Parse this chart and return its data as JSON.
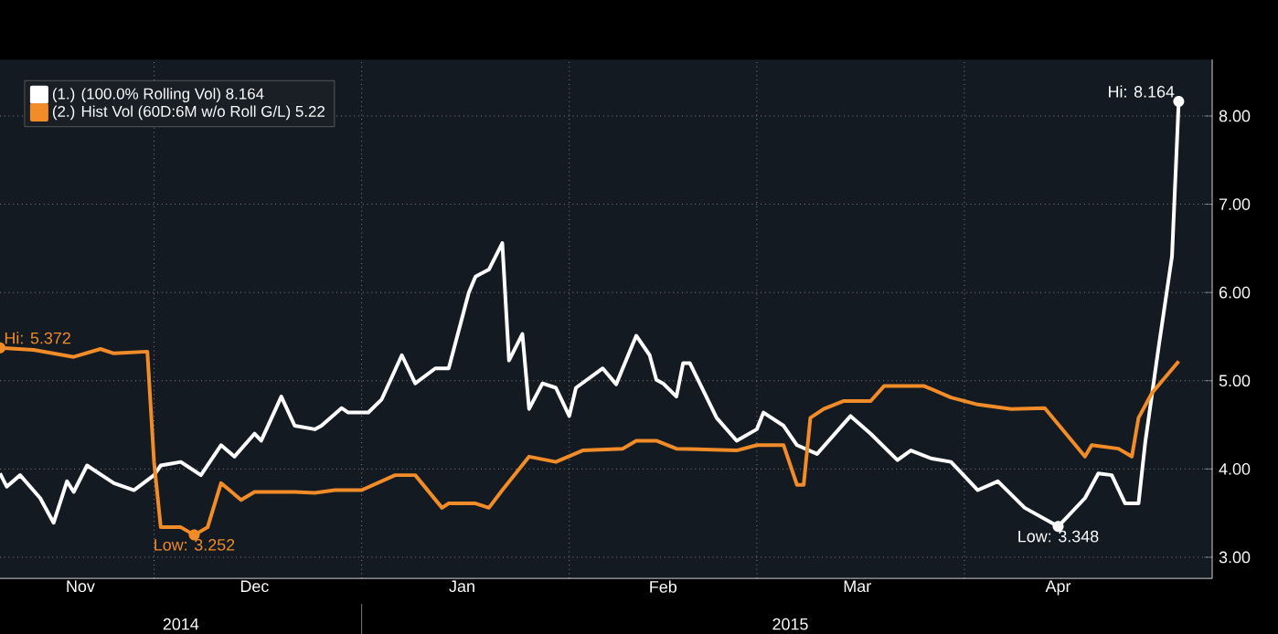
{
  "chart_data": {
    "type": "line",
    "xlim": [
      "2014-11-08",
      "2015-05-08"
    ],
    "ylim": [
      2.76,
      8.64
    ],
    "xticks": [
      {
        "value": "2014-11-20",
        "label": "Nov"
      },
      {
        "value": "2014-12-16",
        "label": "Dec"
      },
      {
        "value": "2015-01-16",
        "label": "Jan"
      },
      {
        "value": "2015-02-15",
        "label": "Feb"
      },
      {
        "value": "2015-03-16",
        "label": "Mar"
      },
      {
        "value": "2015-04-15",
        "label": "Apr"
      },
      {
        "value": "2014-12-01",
        "label": null
      },
      {
        "value": "2015-01-01",
        "label": null
      },
      {
        "value": "2015-02-01",
        "label": null
      },
      {
        "value": "2015-03-01",
        "label": null
      },
      {
        "value": "2015-04-01",
        "label": null
      }
    ],
    "x2lim": [
      "2014-11-08",
      "2015-05-08"
    ],
    "x2ticks": [
      {
        "value": "2014-12-05",
        "label": "2014"
      },
      {
        "value": "2015-03-06",
        "label": "2015"
      },
      {
        "value": "2015-01-01",
        "label": null
      }
    ],
    "yticks": [
      {
        "value": 3,
        "label": "3.00"
      },
      {
        "value": 4,
        "label": "4.00"
      },
      {
        "value": 5,
        "label": "5.00"
      },
      {
        "value": 6,
        "label": "6.00"
      },
      {
        "value": 7,
        "label": "7.00"
      },
      {
        "value": 8,
        "label": "8.00"
      }
    ],
    "grid": true,
    "legend": "top left",
    "series": [
      {
        "name": "(1.) (100.0% Rolling Vol) 8.164",
        "color": "#ffffff",
        "x": [
          "2014-11-08",
          "2014-11-09",
          "2014-11-11",
          "2014-11-14",
          "2014-11-16",
          "2014-11-18",
          "2014-11-19",
          "2014-11-21",
          "2014-11-25",
          "2014-11-28",
          "2014-12-01",
          "2014-12-02",
          "2014-12-05",
          "2014-12-08",
          "2014-12-11",
          "2014-12-13",
          "2014-12-16",
          "2014-12-17",
          "2014-12-20",
          "2014-12-22",
          "2014-12-25",
          "2014-12-26",
          "2014-12-29",
          "2014-12-30",
          "2015-01-02",
          "2015-01-04",
          "2015-01-07",
          "2015-01-09",
          "2015-01-12",
          "2015-01-14",
          "2015-01-17",
          "2015-01-18",
          "2015-01-20",
          "2015-01-22",
          "2015-01-23",
          "2015-01-25",
          "2015-01-26",
          "2015-01-28",
          "2015-01-30",
          "2015-02-01",
          "2015-02-02",
          "2015-02-06",
          "2015-02-08",
          "2015-02-11",
          "2015-02-13",
          "2015-02-14",
          "2015-02-15",
          "2015-02-17",
          "2015-02-18",
          "2015-02-19",
          "2015-02-23",
          "2015-02-26",
          "2015-03-01",
          "2015-03-02",
          "2015-03-05",
          "2015-03-07",
          "2015-03-10",
          "2015-03-15",
          "2015-03-18",
          "2015-03-22",
          "2015-03-24",
          "2015-03-27",
          "2015-03-30",
          "2015-04-03",
          "2015-04-06",
          "2015-04-10",
          "2015-04-15",
          "2015-04-19",
          "2015-04-21",
          "2015-04-23",
          "2015-04-25",
          "2015-04-27",
          "2015-04-28",
          "2015-04-30",
          "2015-05-02",
          "2015-05-03"
        ],
        "values": [
          3.95,
          3.8,
          3.93,
          3.67,
          3.39,
          3.86,
          3.74,
          4.04,
          3.84,
          3.76,
          3.93,
          4.04,
          4.08,
          3.93,
          4.27,
          4.14,
          4.4,
          4.32,
          4.82,
          4.49,
          4.45,
          4.49,
          4.69,
          4.64,
          4.64,
          4.79,
          5.29,
          4.97,
          5.14,
          5.14,
          6.0,
          6.18,
          6.26,
          6.56,
          5.23,
          5.53,
          4.68,
          4.97,
          4.92,
          4.6,
          4.92,
          5.14,
          4.96,
          5.51,
          5.29,
          5.01,
          4.97,
          4.82,
          5.2,
          5.2,
          4.58,
          4.32,
          4.45,
          4.64,
          4.49,
          4.27,
          4.17,
          4.6,
          4.4,
          4.1,
          4.21,
          4.12,
          4.08,
          3.76,
          3.86,
          3.56,
          3.348,
          3.67,
          3.95,
          3.93,
          3.61,
          3.61,
          4.3,
          5.38,
          6.41,
          8.164
        ]
      },
      {
        "name": "(2.) Hist Vol (60D:6M w/o Roll G/L) 5.22",
        "color": "#f28c28",
        "x": [
          "2014-11-08",
          "2014-11-13",
          "2014-11-19",
          "2014-11-23",
          "2014-11-25",
          "2014-11-30",
          "2014-12-01",
          "2014-12-02",
          "2014-12-05",
          "2014-12-07",
          "2014-12-09",
          "2014-12-11",
          "2014-12-14",
          "2014-12-16",
          "2014-12-22",
          "2014-12-25",
          "2014-12-28",
          "2015-01-01",
          "2015-01-06",
          "2015-01-09",
          "2015-01-13",
          "2015-01-14",
          "2015-01-18",
          "2015-01-20",
          "2015-01-22",
          "2015-01-26",
          "2015-01-30",
          "2015-02-03",
          "2015-02-09",
          "2015-02-11",
          "2015-02-14",
          "2015-02-17",
          "2015-02-26",
          "2015-03-01",
          "2015-03-05",
          "2015-03-07",
          "2015-03-08",
          "2015-03-09",
          "2015-03-11",
          "2015-03-14",
          "2015-03-18",
          "2015-03-20",
          "2015-03-26",
          "2015-03-30",
          "2015-04-03",
          "2015-04-08",
          "2015-04-13",
          "2015-04-19",
          "2015-04-20",
          "2015-04-24",
          "2015-04-26",
          "2015-04-27",
          "2015-04-29",
          "2015-05-03"
        ],
        "values": [
          5.372,
          5.35,
          5.27,
          5.36,
          5.31,
          5.33,
          4.08,
          3.34,
          3.34,
          3.252,
          3.34,
          3.84,
          3.65,
          3.74,
          3.74,
          3.73,
          3.76,
          3.76,
          3.93,
          3.93,
          3.56,
          3.61,
          3.61,
          3.56,
          3.76,
          4.14,
          4.08,
          4.21,
          4.23,
          4.32,
          4.32,
          4.23,
          4.21,
          4.27,
          4.27,
          3.82,
          3.82,
          4.58,
          4.68,
          4.77,
          4.77,
          4.94,
          4.94,
          4.81,
          4.73,
          4.68,
          4.69,
          4.14,
          4.27,
          4.23,
          4.14,
          4.58,
          4.86,
          5.22
        ]
      }
    ],
    "annotations": [
      {
        "text": "Hi: 8.164",
        "x": "2015-05-03",
        "y": 8.164
      },
      {
        "text": "Hi: 5.372",
        "x": "2014-11-08",
        "y": 5.372
      },
      {
        "text": "Low: 3.252",
        "x": "2014-12-07",
        "y": 3.252
      },
      {
        "text": "Low: 3.348",
        "x": "2015-04-15",
        "y": 3.348
      }
    ]
  }
}
